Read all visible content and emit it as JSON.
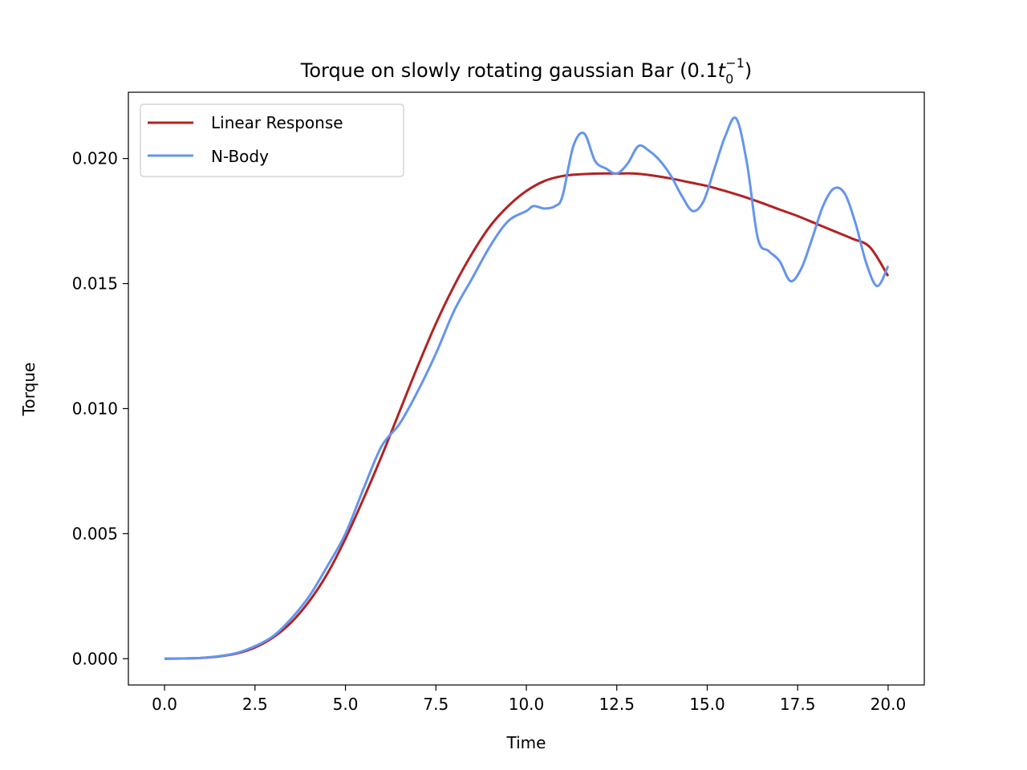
{
  "chart_data": {
    "type": "line",
    "title": {
      "main": "Torque on slowly rotating gaussian Bar (0.1",
      "var": "t",
      "sub": "0",
      "sup": "−1",
      "close": ")"
    },
    "xlabel": "Time",
    "ylabel": "Torque",
    "xlim": [
      -1.0,
      21.0
    ],
    "ylim": [
      -0.00105,
      0.02265
    ],
    "x_ticks": [
      0.0,
      2.5,
      5.0,
      7.5,
      10.0,
      12.5,
      15.0,
      17.5,
      20.0
    ],
    "x_tick_labels": [
      "0.0",
      "2.5",
      "5.0",
      "7.5",
      "10.0",
      "12.5",
      "15.0",
      "17.5",
      "20.0"
    ],
    "y_ticks": [
      0.0,
      0.005,
      0.01,
      0.015,
      0.02
    ],
    "y_tick_labels": [
      "0.000",
      "0.005",
      "0.010",
      "0.015",
      "0.020"
    ],
    "grid": false,
    "legend_position": "top-left",
    "series": [
      {
        "name": "Linear Response",
        "color": "#b22222",
        "x": [
          0,
          0.5,
          1,
          1.5,
          2,
          2.5,
          3,
          3.5,
          4,
          4.5,
          5,
          5.5,
          6,
          6.5,
          7,
          7.5,
          8,
          8.5,
          9,
          9.5,
          10,
          10.5,
          11,
          11.5,
          12,
          12.5,
          13,
          13.5,
          14,
          14.5,
          15,
          15.5,
          16,
          16.5,
          17,
          17.5,
          18,
          18.5,
          19,
          19.5,
          20
        ],
        "y": [
          0.0,
          1e-05,
          3e-05,
          9e-05,
          0.00021,
          0.00045,
          0.00085,
          0.00145,
          0.0023,
          0.0034,
          0.0048,
          0.0064,
          0.0081,
          0.0099,
          0.0117,
          0.0134,
          0.0149,
          0.0162,
          0.0173,
          0.0181,
          0.0187,
          0.0191,
          0.0193,
          0.01937,
          0.0194,
          0.0194,
          0.0194,
          0.01932,
          0.0192,
          0.01905,
          0.0189,
          0.0187,
          0.01848,
          0.01823,
          0.01796,
          0.0177,
          0.0174,
          0.0171,
          0.0168,
          0.01645,
          0.0153
        ]
      },
      {
        "name": "N-Body",
        "color": "#6495ed",
        "x": [
          0,
          0.5,
          1,
          1.5,
          2,
          2.5,
          3,
          3.5,
          4,
          4.5,
          5,
          5.5,
          6,
          6.5,
          7,
          7.5,
          8,
          8.5,
          9,
          9.5,
          10,
          10.2,
          10.5,
          10.8,
          11,
          11.3,
          11.6,
          11.9,
          12.2,
          12.5,
          12.8,
          13.1,
          13.4,
          13.7,
          14,
          14.3,
          14.6,
          14.9,
          15.2,
          15.5,
          15.8,
          16.1,
          16.4,
          16.7,
          17,
          17.3,
          17.6,
          17.9,
          18.2,
          18.5,
          18.8,
          19.1,
          19.4,
          19.7,
          20
        ],
        "y": [
          0.0,
          1e-05,
          3e-05,
          0.0001,
          0.00023,
          0.0005,
          0.0009,
          0.0016,
          0.0025,
          0.0037,
          0.005,
          0.0068,
          0.0085,
          0.0094,
          0.0107,
          0.0122,
          0.0139,
          0.0152,
          0.0165,
          0.0175,
          0.0179,
          0.0181,
          0.018,
          0.0181,
          0.0185,
          0.0205,
          0.021,
          0.0199,
          0.0196,
          0.0194,
          0.0198,
          0.0205,
          0.0203,
          0.0199,
          0.0193,
          0.0185,
          0.0179,
          0.0183,
          0.0196,
          0.0209,
          0.0216,
          0.0198,
          0.0168,
          0.0163,
          0.0159,
          0.0151,
          0.0156,
          0.0168,
          0.0181,
          0.0188,
          0.0186,
          0.0174,
          0.0158,
          0.0149,
          0.0157
        ]
      }
    ]
  }
}
